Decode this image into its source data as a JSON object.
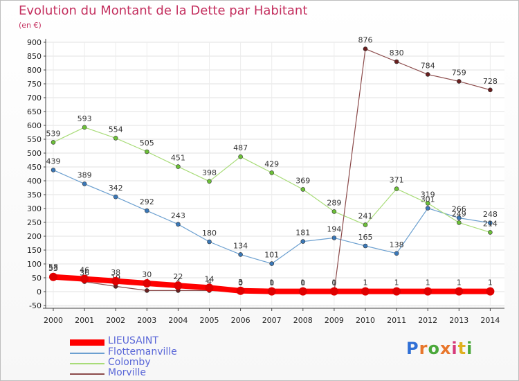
{
  "title": "Evolution du Montant de la Dette par Habitant",
  "subtitle": "(en €)",
  "logo": {
    "text": "Proxiti",
    "colors": [
      "#2f6fd6",
      "#e8762b",
      "#4aa83a",
      "#e8762b",
      "#d63a7a",
      "#e0b020",
      "#4aa83a"
    ]
  },
  "chart_data": {
    "type": "line",
    "title": "Evolution du Montant de la Dette par Habitant",
    "ylabel": "(en €)",
    "xlabel": "",
    "ylim": [
      -50,
      900
    ],
    "yticks": [
      -50,
      0,
      50,
      100,
      150,
      200,
      250,
      300,
      350,
      400,
      450,
      500,
      550,
      600,
      650,
      700,
      750,
      800,
      850,
      900
    ],
    "x": [
      "2000",
      "2001",
      "2002",
      "2003",
      "2004",
      "2005",
      "2006",
      "2007",
      "2008",
      "2009",
      "2010",
      "2011",
      "2012",
      "2013",
      "2014"
    ],
    "grid": true,
    "legend_position": "bottom-left",
    "series": [
      {
        "name": "Flottemanville",
        "color": "#6ca0d0",
        "marker": "#3a78b8",
        "width": 1.2,
        "marker_r": 3,
        "values": [
          439,
          389,
          342,
          292,
          243,
          180,
          134,
          101,
          181,
          194,
          165,
          138,
          301,
          266,
          248
        ],
        "labels": [
          "439",
          "389",
          "342",
          "292",
          "243",
          "180",
          "134",
          "101",
          "181",
          "194",
          "165",
          "138",
          "301",
          "266",
          "248"
        ]
      },
      {
        "name": "Colomby",
        "color": "#a8dc78",
        "marker": "#6cc038",
        "width": 1.2,
        "marker_r": 3,
        "values": [
          539,
          593,
          554,
          505,
          451,
          398,
          487,
          429,
          369,
          289,
          241,
          371,
          319,
          249,
          214
        ],
        "labels": [
          "539",
          "593",
          "554",
          "505",
          "451",
          "398",
          "487",
          "429",
          "369",
          "289",
          "241",
          "371",
          "319",
          "249",
          "214"
        ]
      },
      {
        "name": "Morville",
        "color": "#8b4a4a",
        "marker": "#6a1f1f",
        "width": 1.2,
        "marker_r": 3,
        "values": [
          58,
          36,
          19,
          4,
          4,
          4,
          0,
          0,
          0,
          0,
          876,
          830,
          784,
          759,
          728
        ],
        "labels": [
          "58",
          "36",
          "19",
          "4",
          "4",
          "4",
          "0",
          "0",
          "0",
          "0",
          "876",
          "830",
          "784",
          "759",
          "728"
        ]
      },
      {
        "name": "LIEUSAINT",
        "color": "#ff0000",
        "marker": "#e00000",
        "width": 8,
        "marker_r": 6,
        "values": [
          53,
          46,
          38,
          30,
          22,
          14,
          3,
          1,
          1,
          1,
          1,
          1,
          1,
          1,
          1
        ],
        "labels": [
          "53",
          "46",
          "38",
          "30",
          "22",
          "14",
          "3",
          "1",
          "1",
          "1",
          "1",
          "1",
          "1",
          "1",
          "1"
        ]
      }
    ],
    "legend": [
      "LIEUSAINT",
      "Flottemanville",
      "Colomby",
      "Morville"
    ]
  }
}
